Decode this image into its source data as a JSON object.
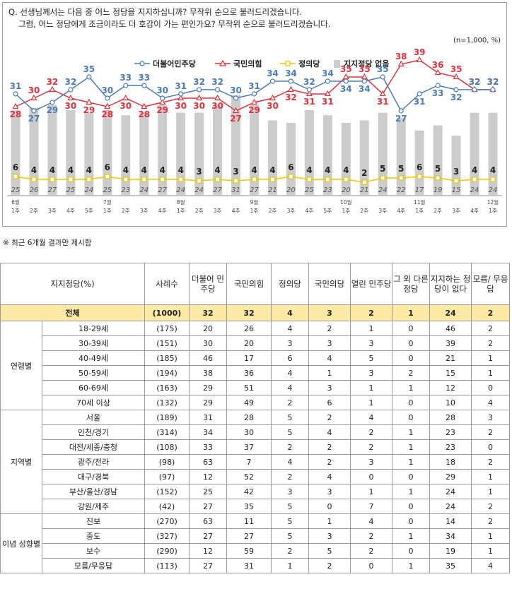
{
  "question": {
    "line1": "Q. 선생님께서는 다음 중 어느 정당을 지지하십니까? 무작위 순으로 불러드리겠습니다.",
    "line2": "그럼, 어느 정당에게 조금이라도 더 호감이 가는 편인가요? 무작위 순으로 불러드리겠습니다."
  },
  "sample_note": "(n=1,000, %)",
  "footnote": "※ 최근 6개월 결과만 제시함",
  "chart_data": {
    "type": "line",
    "x": [
      "6월 1주",
      "2주",
      "3주",
      "4주",
      "5주",
      "7월 1주",
      "2주",
      "3주",
      "4주",
      "8월 1주",
      "2주",
      "3주",
      "4주",
      "9월 1주",
      "2주",
      "3주",
      "4주",
      "5주",
      "10월 1주",
      "2주",
      "3주",
      "4주",
      "11월 1주",
      "2주",
      "3주",
      "4주",
      "12월 1주"
    ],
    "x_month_labels": [
      "6월",
      "",
      "",
      "",
      "",
      "7월",
      "",
      "",
      "",
      "8월",
      "",
      "",
      "",
      "9월",
      "",
      "",
      "",
      "",
      "10월",
      "",
      "",
      "",
      "11월",
      "",
      "",
      "",
      "12월"
    ],
    "x_week_labels": [
      "1주",
      "2주",
      "3주",
      "4주",
      "5주",
      "1주",
      "2주",
      "3주",
      "4주",
      "1주",
      "2주",
      "3주",
      "4주",
      "1주",
      "2주",
      "3주",
      "4주",
      "5주",
      "1주",
      "2주",
      "3주",
      "4주",
      "1주",
      "2주",
      "3주",
      "4주",
      "1주"
    ],
    "series": [
      {
        "name": "더불어민주당",
        "type": "line",
        "color": "#4a7bb7",
        "values": [
          31,
          27,
          29,
          32,
          35,
          30,
          33,
          33,
          30,
          31,
          32,
          32,
          30,
          31,
          34,
          34,
          32,
          34,
          34,
          34,
          35,
          27,
          31,
          33,
          32,
          32,
          32
        ]
      },
      {
        "name": "국민의힘",
        "type": "line",
        "color": "#e0313b",
        "values": [
          28,
          30,
          32,
          30,
          29,
          28,
          30,
          28,
          29,
          30,
          30,
          30,
          27,
          29,
          30,
          32,
          31,
          31,
          35,
          35,
          31,
          38,
          39,
          36,
          35,
          32,
          32
        ]
      },
      {
        "name": "정의당",
        "type": "line",
        "color": "#e8c800",
        "values": [
          6,
          4,
          4,
          4,
          4,
          6,
          4,
          4,
          4,
          4,
          3,
          4,
          3,
          4,
          4,
          6,
          4,
          4,
          4,
          2,
          5,
          5,
          6,
          5,
          3,
          4,
          4
        ]
      },
      {
        "name": "지지정당 없음",
        "type": "bar",
        "color": "#cccccc",
        "values": [
          25,
          26,
          27,
          25,
          24,
          25,
          23,
          24,
          27,
          24,
          24,
          27,
          31,
          27,
          21,
          20,
          25,
          23,
          20,
          21,
          24,
          22,
          17,
          19,
          15,
          24,
          24
        ]
      }
    ],
    "legend_placement": "top",
    "ylim": [
      0,
      45
    ]
  },
  "table": {
    "headers": [
      "지지정당(%)",
      "사례수",
      "더불어 민주당",
      "국민의힘",
      "정의당",
      "국민의당",
      "열린 민주당",
      "그 외 다른 정당",
      "지지하는 정당이 없다",
      "모름/ 무응답"
    ],
    "total": {
      "label": "전체",
      "cells": [
        "(1000)",
        "32",
        "32",
        "4",
        "3",
        "2",
        "1",
        "24",
        "2"
      ]
    },
    "groups": [
      {
        "name": "연령별",
        "rows": [
          {
            "label": "18-29세",
            "cells": [
              "(175)",
              "20",
              "26",
              "4",
              "2",
              "1",
              "0",
              "46",
              "2"
            ]
          },
          {
            "label": "30-39세",
            "cells": [
              "(151)",
              "30",
              "20",
              "3",
              "3",
              "3",
              "0",
              "39",
              "2"
            ]
          },
          {
            "label": "40-49세",
            "cells": [
              "(185)",
              "46",
              "17",
              "6",
              "4",
              "5",
              "0",
              "21",
              "1"
            ]
          },
          {
            "label": "50-59세",
            "cells": [
              "(194)",
              "38",
              "36",
              "4",
              "1",
              "3",
              "2",
              "15",
              "1"
            ]
          },
          {
            "label": "60-69세",
            "cells": [
              "(163)",
              "29",
              "51",
              "4",
              "3",
              "1",
              "1",
              "12",
              "0"
            ]
          },
          {
            "label": "70세 이상",
            "cells": [
              "(132)",
              "29",
              "49",
              "2",
              "6",
              "1",
              "0",
              "10",
              "4"
            ]
          }
        ]
      },
      {
        "name": "지역별",
        "rows": [
          {
            "label": "서울",
            "cells": [
              "(189)",
              "31",
              "28",
              "5",
              "2",
              "4",
              "0",
              "28",
              "3"
            ]
          },
          {
            "label": "인천/경기",
            "cells": [
              "(314)",
              "34",
              "30",
              "5",
              "4",
              "2",
              "1",
              "23",
              "2"
            ]
          },
          {
            "label": "대전/세종/충청",
            "cells": [
              "(108)",
              "33",
              "37",
              "2",
              "2",
              "2",
              "1",
              "23",
              "0"
            ]
          },
          {
            "label": "광주/전라",
            "cells": [
              "(98)",
              "63",
              "7",
              "4",
              "2",
              "3",
              "1",
              "18",
              "2"
            ]
          },
          {
            "label": "대구/경북",
            "cells": [
              "(97)",
              "12",
              "52",
              "2",
              "4",
              "0",
              "0",
              "29",
              "1"
            ]
          },
          {
            "label": "부산/울산/경남",
            "cells": [
              "(152)",
              "25",
              "42",
              "3",
              "3",
              "1",
              "1",
              "24",
              "1"
            ]
          },
          {
            "label": "강원/제주",
            "cells": [
              "(42)",
              "27",
              "35",
              "5",
              "0",
              "7",
              "0",
              "24",
              "2"
            ]
          }
        ]
      },
      {
        "name": "이념 성향별",
        "rows": [
          {
            "label": "진보",
            "cells": [
              "(270)",
              "63",
              "11",
              "5",
              "1",
              "4",
              "0",
              "14",
              "2"
            ]
          },
          {
            "label": "중도",
            "cells": [
              "(327)",
              "27",
              "27",
              "5",
              "3",
              "2",
              "1",
              "34",
              "1"
            ]
          },
          {
            "label": "보수",
            "cells": [
              "(290)",
              "12",
              "59",
              "2",
              "5",
              "2",
              "0",
              "19",
              "1"
            ]
          },
          {
            "label": "모름/무응답",
            "cells": [
              "(113)",
              "27",
              "31",
              "1",
              "2",
              "0",
              "1",
              "35",
              "4"
            ]
          }
        ]
      }
    ]
  }
}
